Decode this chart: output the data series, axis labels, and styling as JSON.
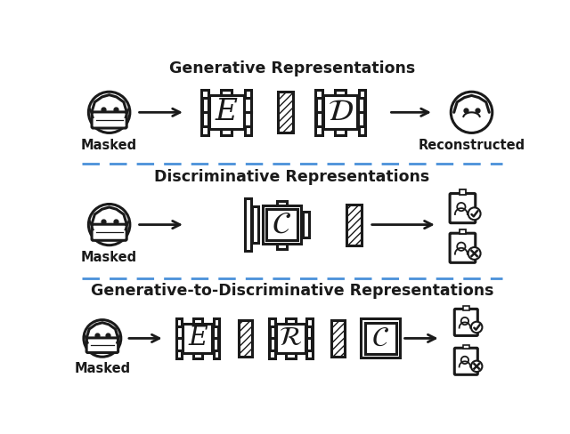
{
  "title1": "Generative Representations",
  "title2": "Discriminative Representations",
  "title3": "Generative-to-Discriminative Representations",
  "label_masked": "Masked",
  "label_reconstructed": "Reconstructed",
  "bg_color": "#ffffff",
  "line_color": "#1a1a1a",
  "dashed_color": "#4a90d9",
  "title_fontsize": 12.5,
  "label_fontsize": 10.5,
  "letter_fontsize": 26
}
